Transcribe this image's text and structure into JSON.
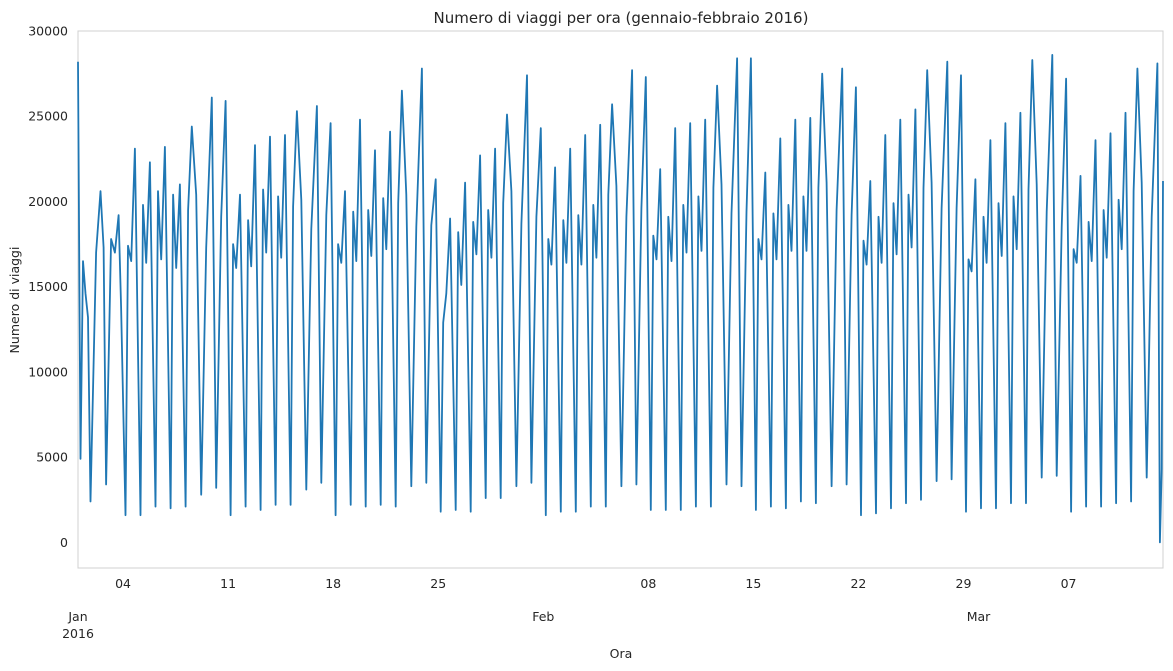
{
  "chart_data": {
    "type": "line",
    "title": "Numero di viaggi per ora (gennaio-febbraio 2016)",
    "xlabel": "Ora",
    "ylabel": "Numero di viaggi",
    "xlim": [
      "2016-01-01 00:00",
      "2016-03-13 07:00"
    ],
    "ylim": [
      -1500,
      30000
    ],
    "grid": false,
    "y_ticks": [
      {
        "value": 0,
        "label": "0"
      },
      {
        "value": 5000,
        "label": "5000"
      },
      {
        "value": 10000,
        "label": "10000"
      },
      {
        "value": 15000,
        "label": "15000"
      },
      {
        "value": 20000,
        "label": "20000"
      },
      {
        "value": 25000,
        "label": "25000"
      },
      {
        "value": 30000,
        "label": "30000"
      }
    ],
    "x_minor_ticks": [
      {
        "date": "2016-01-04",
        "label": "04"
      },
      {
        "date": "2016-01-11",
        "label": "11"
      },
      {
        "date": "2016-01-18",
        "label": "18"
      },
      {
        "date": "2016-01-25",
        "label": "25"
      },
      {
        "date": "2016-02-08",
        "label": "08"
      },
      {
        "date": "2016-02-15",
        "label": "15"
      },
      {
        "date": "2016-02-22",
        "label": "22"
      },
      {
        "date": "2016-02-29",
        "label": "29"
      },
      {
        "date": "2016-03-07",
        "label": "07"
      }
    ],
    "x_major_ticks": [
      {
        "date": "2016-01-01",
        "label": "Jan",
        "sublabel": "2016"
      },
      {
        "date": "2016-02-01",
        "label": "Feb",
        "sublabel": ""
      },
      {
        "date": "2016-03-01",
        "label": "Mar",
        "sublabel": ""
      }
    ],
    "series": [
      {
        "color": "#1f77b4",
        "x": [
          "2016-01-01 00:00",
          "2016-01-01 04:00",
          "2016-01-01 08:00",
          "2016-01-01 12:00",
          "2016-01-01 16:00",
          "2016-01-01 20:00",
          "2016-01-02 05:00",
          "2016-01-02 12:00",
          "2016-01-02 17:00",
          "2016-01-02 21:00",
          "2016-01-03 05:00",
          "2016-01-03 11:00",
          "2016-01-03 17:00",
          "2016-01-03 21:00",
          "2016-01-04 04:00",
          "2016-01-04 08:00",
          "2016-01-04 13:00",
          "2016-01-04 19:00",
          "2016-01-05 04:00",
          "2016-01-05 08:00",
          "2016-01-05 13:00",
          "2016-01-05 19:00",
          "2016-01-06 04:00",
          "2016-01-06 08:00",
          "2016-01-06 13:00",
          "2016-01-06 19:00",
          "2016-01-07 04:00",
          "2016-01-07 08:00",
          "2016-01-07 13:00",
          "2016-01-07 19:00",
          "2016-01-08 04:00",
          "2016-01-08 08:00",
          "2016-01-08 14:00",
          "2016-01-08 21:00",
          "2016-01-09 05:00",
          "2016-01-09 13:00",
          "2016-01-09 22:00",
          "2016-01-10 05:00",
          "2016-01-10 13:00",
          "2016-01-10 20:00",
          "2016-01-11 04:00",
          "2016-01-11 08:00",
          "2016-01-11 13:00",
          "2016-01-11 19:00",
          "2016-01-12 04:00",
          "2016-01-12 08:00",
          "2016-01-12 13:00",
          "2016-01-12 19:00",
          "2016-01-13 04:00",
          "2016-01-13 08:00",
          "2016-01-13 13:00",
          "2016-01-13 19:00",
          "2016-01-14 04:00",
          "2016-01-14 08:00",
          "2016-01-14 13:00",
          "2016-01-14 19:00",
          "2016-01-15 04:00",
          "2016-01-15 08:00",
          "2016-01-15 14:00",
          "2016-01-15 21:00",
          "2016-01-16 05:00",
          "2016-01-16 13:00",
          "2016-01-16 22:00",
          "2016-01-17 05:00",
          "2016-01-17 13:00",
          "2016-01-17 20:00",
          "2016-01-18 04:00",
          "2016-01-18 08:00",
          "2016-01-18 13:00",
          "2016-01-18 19:00",
          "2016-01-19 04:00",
          "2016-01-19 08:00",
          "2016-01-19 13:00",
          "2016-01-19 19:00",
          "2016-01-20 04:00",
          "2016-01-20 08:00",
          "2016-01-20 13:00",
          "2016-01-20 19:00",
          "2016-01-21 04:00",
          "2016-01-21 08:00",
          "2016-01-21 13:00",
          "2016-01-21 19:00",
          "2016-01-22 04:00",
          "2016-01-22 08:00",
          "2016-01-22 14:00",
          "2016-01-22 21:00",
          "2016-01-23 05:00",
          "2016-01-23 13:00",
          "2016-01-23 22:00",
          "2016-01-24 05:00",
          "2016-01-24 13:00",
          "2016-01-24 20:00",
          "2016-01-25 04:00",
          "2016-01-25 08:00",
          "2016-01-25 13:00",
          "2016-01-25 19:00",
          "2016-01-26 04:00",
          "2016-01-26 08:00",
          "2016-01-26 13:00",
          "2016-01-26 19:00",
          "2016-01-27 04:00",
          "2016-01-27 08:00",
          "2016-01-27 13:00",
          "2016-01-27 19:00",
          "2016-01-28 04:00",
          "2016-01-28 08:00",
          "2016-01-28 13:00",
          "2016-01-28 19:00",
          "2016-01-29 04:00",
          "2016-01-29 08:00",
          "2016-01-29 14:00",
          "2016-01-29 21:00",
          "2016-01-30 05:00",
          "2016-01-30 13:00",
          "2016-01-30 22:00",
          "2016-01-31 05:00",
          "2016-01-31 13:00",
          "2016-01-31 20:00",
          "2016-02-01 04:00",
          "2016-02-01 08:00",
          "2016-02-01 13:00",
          "2016-02-01 19:00",
          "2016-02-02 04:00",
          "2016-02-02 08:00",
          "2016-02-02 13:00",
          "2016-02-02 19:00",
          "2016-02-03 04:00",
          "2016-02-03 08:00",
          "2016-02-03 13:00",
          "2016-02-03 19:00",
          "2016-02-04 04:00",
          "2016-02-04 08:00",
          "2016-02-04 13:00",
          "2016-02-04 19:00",
          "2016-02-05 04:00",
          "2016-02-05 08:00",
          "2016-02-05 14:00",
          "2016-02-05 21:00",
          "2016-02-06 05:00",
          "2016-02-06 13:00",
          "2016-02-06 22:00",
          "2016-02-07 05:00",
          "2016-02-07 13:00",
          "2016-02-07 20:00",
          "2016-02-08 04:00",
          "2016-02-08 08:00",
          "2016-02-08 13:00",
          "2016-02-08 19:00",
          "2016-02-09 04:00",
          "2016-02-09 08:00",
          "2016-02-09 13:00",
          "2016-02-09 19:00",
          "2016-02-10 04:00",
          "2016-02-10 08:00",
          "2016-02-10 13:00",
          "2016-02-10 19:00",
          "2016-02-11 04:00",
          "2016-02-11 08:00",
          "2016-02-11 13:00",
          "2016-02-11 19:00",
          "2016-02-12 04:00",
          "2016-02-12 08:00",
          "2016-02-12 14:00",
          "2016-02-12 21:00",
          "2016-02-13 05:00",
          "2016-02-13 13:00",
          "2016-02-13 22:00",
          "2016-02-14 05:00",
          "2016-02-14 13:00",
          "2016-02-14 20:00",
          "2016-02-15 04:00",
          "2016-02-15 08:00",
          "2016-02-15 13:00",
          "2016-02-15 19:00",
          "2016-02-16 04:00",
          "2016-02-16 08:00",
          "2016-02-16 13:00",
          "2016-02-16 19:00",
          "2016-02-17 04:00",
          "2016-02-17 08:00",
          "2016-02-17 13:00",
          "2016-02-17 19:00",
          "2016-02-18 04:00",
          "2016-02-18 08:00",
          "2016-02-18 13:00",
          "2016-02-18 19:00",
          "2016-02-19 04:00",
          "2016-02-19 08:00",
          "2016-02-19 14:00",
          "2016-02-19 21:00",
          "2016-02-20 05:00",
          "2016-02-20 13:00",
          "2016-02-20 22:00",
          "2016-02-21 05:00",
          "2016-02-21 13:00",
          "2016-02-21 20:00",
          "2016-02-22 04:00",
          "2016-02-22 08:00",
          "2016-02-22 13:00",
          "2016-02-22 19:00",
          "2016-02-23 04:00",
          "2016-02-23 08:00",
          "2016-02-23 13:00",
          "2016-02-23 19:00",
          "2016-02-24 04:00",
          "2016-02-24 08:00",
          "2016-02-24 13:00",
          "2016-02-24 19:00",
          "2016-02-25 04:00",
          "2016-02-25 08:00",
          "2016-02-25 13:00",
          "2016-02-25 19:00",
          "2016-02-26 04:00",
          "2016-02-26 08:00",
          "2016-02-26 14:00",
          "2016-02-26 21:00",
          "2016-02-27 05:00",
          "2016-02-27 13:00",
          "2016-02-27 22:00",
          "2016-02-28 05:00",
          "2016-02-28 13:00",
          "2016-02-28 20:00",
          "2016-02-29 04:00",
          "2016-02-29 08:00",
          "2016-02-29 13:00",
          "2016-02-29 19:00",
          "2016-03-01 04:00",
          "2016-03-01 08:00",
          "2016-03-01 13:00",
          "2016-03-01 19:00",
          "2016-03-02 04:00",
          "2016-03-02 08:00",
          "2016-03-02 13:00",
          "2016-03-02 19:00",
          "2016-03-03 04:00",
          "2016-03-03 08:00",
          "2016-03-03 13:00",
          "2016-03-03 19:00",
          "2016-03-04 04:00",
          "2016-03-04 08:00",
          "2016-03-04 14:00",
          "2016-03-04 21:00",
          "2016-03-05 05:00",
          "2016-03-05 13:00",
          "2016-03-05 22:00",
          "2016-03-06 05:00",
          "2016-03-06 13:00",
          "2016-03-06 20:00",
          "2016-03-07 04:00",
          "2016-03-07 08:00",
          "2016-03-07 13:00",
          "2016-03-07 19:00",
          "2016-03-08 04:00",
          "2016-03-08 08:00",
          "2016-03-08 13:00",
          "2016-03-08 19:00",
          "2016-03-09 04:00",
          "2016-03-09 08:00",
          "2016-03-09 13:00",
          "2016-03-09 19:00",
          "2016-03-10 04:00",
          "2016-03-10 08:00",
          "2016-03-10 13:00",
          "2016-03-10 19:00",
          "2016-03-11 04:00",
          "2016-03-11 08:00",
          "2016-03-11 14:00",
          "2016-03-11 21:00",
          "2016-03-12 05:00",
          "2016-03-12 13:00",
          "2016-03-12 22:00",
          "2016-03-13 02:00",
          "2016-03-13 05:00",
          "2016-03-13 07:00"
        ],
        "values": [
          28200,
          4900,
          16500,
          14600,
          13200,
          2400,
          17000,
          20600,
          17300,
          3400,
          17800,
          17000,
          19200,
          13800,
          1600,
          17400,
          16500,
          23100,
          1600,
          19800,
          16400,
          22300,
          2100,
          20600,
          16600,
          23200,
          2000,
          20400,
          16100,
          21000,
          2100,
          19500,
          24400,
          20400,
          2800,
          17300,
          26100,
          3200,
          19100,
          25900,
          1600,
          17500,
          16100,
          20400,
          2100,
          18900,
          16200,
          23300,
          1900,
          20700,
          17000,
          23800,
          2200,
          20300,
          16700,
          23900,
          2200,
          19700,
          25300,
          20100,
          3100,
          18400,
          25600,
          3500,
          19200,
          24600,
          1600,
          17500,
          16400,
          20600,
          2200,
          19400,
          16500,
          24800,
          2100,
          19500,
          16800,
          23000,
          2200,
          20200,
          17200,
          24100,
          2100,
          19900,
          26500,
          20400,
          3300,
          18500,
          27800,
          3500,
          18600,
          21300,
          1800,
          12900,
          14600,
          19000,
          1900,
          18200,
          15100,
          21100,
          1800,
          18800,
          16900,
          22700,
          2600,
          19500,
          16700,
          23100,
          2600,
          19900,
          25100,
          20600,
          3300,
          18700,
          27400,
          3500,
          19100,
          24300,
          1600,
          17800,
          16300,
          22000,
          1800,
          18900,
          16400,
          23100,
          1800,
          19200,
          16300,
          23900,
          2100,
          19800,
          16700,
          24500,
          2100,
          20400,
          25700,
          20900,
          3300,
          19100,
          27700,
          3400,
          19600,
          27300,
          1900,
          18000,
          16600,
          21900,
          1900,
          19100,
          16500,
          24300,
          1900,
          19800,
          17000,
          24600,
          2100,
          20300,
          17100,
          24800,
          2100,
          20800,
          26800,
          21000,
          3400,
          19300,
          28400,
          3300,
          19400,
          28400,
          1900,
          17800,
          16600,
          21700,
          2100,
          19300,
          16600,
          23700,
          2000,
          19800,
          17100,
          24800,
          2400,
          20300,
          17100,
          24900,
          2300,
          20800,
          27500,
          21100,
          3300,
          19500,
          27800,
          3400,
          19200,
          26700,
          1600,
          17700,
          16300,
          21200,
          1700,
          19100,
          16400,
          23900,
          2000,
          19900,
          16900,
          24800,
          2300,
          20400,
          17300,
          25400,
          2500,
          20800,
          27700,
          21100,
          3600,
          19600,
          28200,
          3700,
          19600,
          27400,
          1800,
          16600,
          15900,
          21300,
          2000,
          19100,
          16400,
          23600,
          2000,
          19900,
          16800,
          24600,
          2300,
          20300,
          17200,
          25200,
          2300,
          20700,
          28300,
          21000,
          3800,
          19400,
          28600,
          3900,
          18500,
          27200,
          1800,
          17200,
          16400,
          21500,
          2100,
          18800,
          16500,
          23600,
          2100,
          19500,
          16700,
          24000,
          2300,
          20100,
          17200,
          25200,
          2400,
          20600,
          27800,
          21100,
          3800,
          19100,
          28100,
          0,
          4300,
          21200
        ]
      }
    ]
  }
}
